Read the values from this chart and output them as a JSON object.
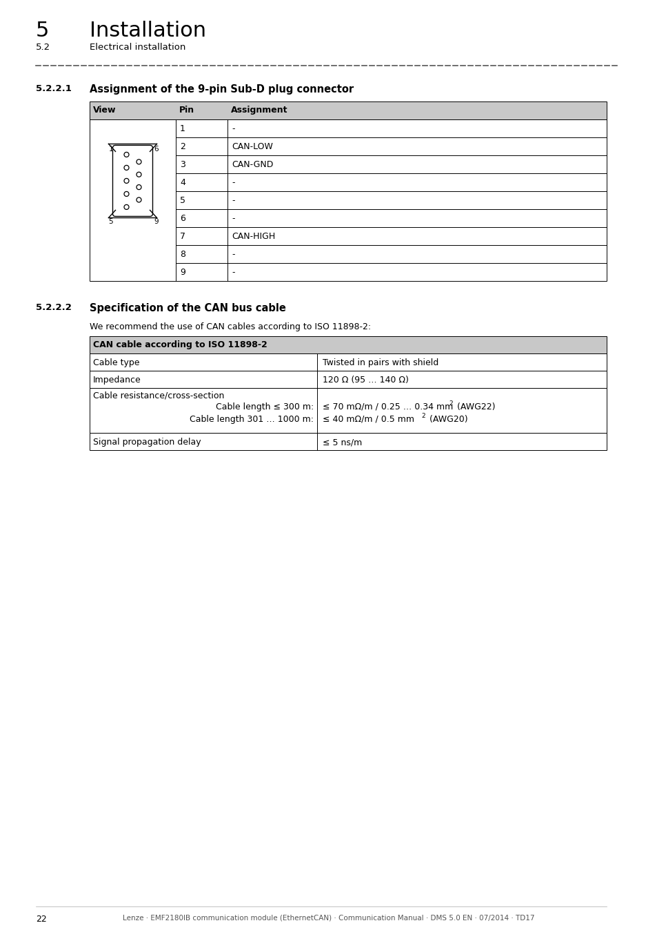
{
  "title_number": "5",
  "title_text": "Installation",
  "subtitle_number": "5.2",
  "subtitle_text": "Electrical installation",
  "section1_number": "5.2.2.1",
  "section1_title": "Assignment of the 9-pin Sub-D plug connector",
  "section2_number": "5.2.2.2",
  "section2_title": "Specification of the CAN bus cable",
  "intro_text": "We recommend the use of CAN cables according to ISO 11898-2:",
  "table2_header": "CAN cable according to ISO 11898-2",
  "footer_text": "Lenze · EMF2180IB communication module (EthernetCAN) · Communication Manual · DMS 5.0 EN · 07/2014 · TD17",
  "page_number": "22",
  "bg_color": "#ffffff",
  "header_gray": "#c8c8c8",
  "border_color": "#000000"
}
